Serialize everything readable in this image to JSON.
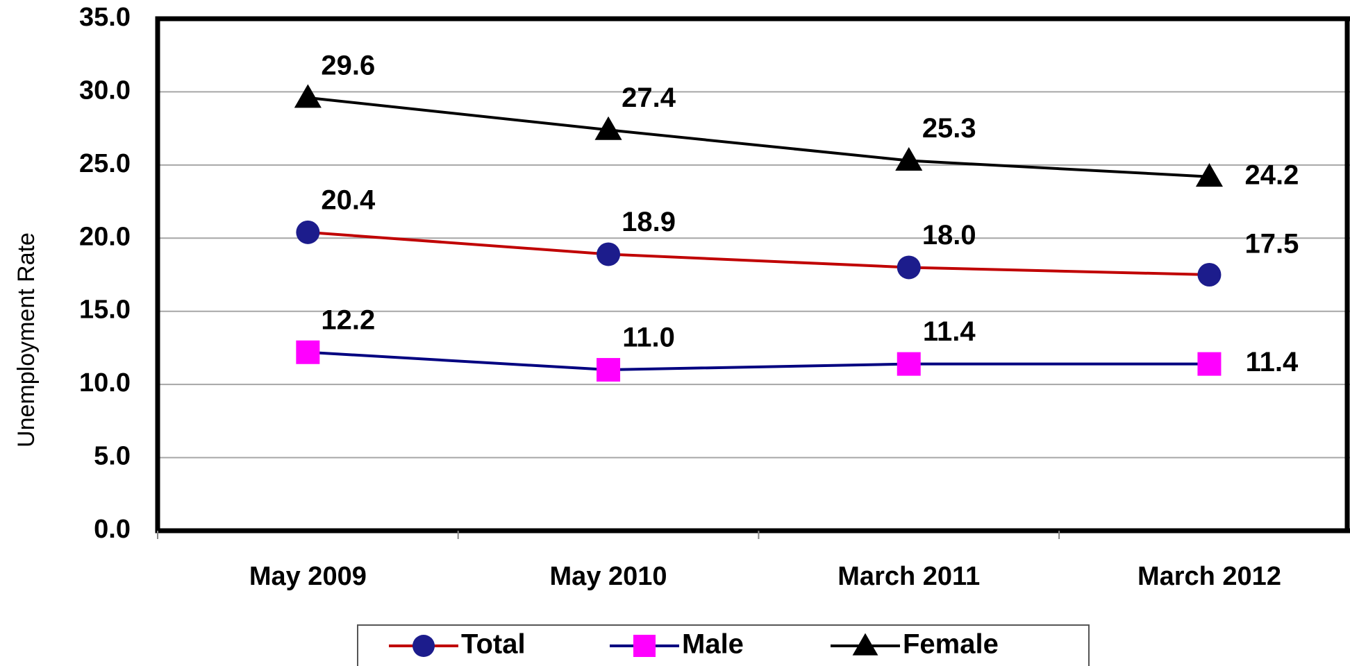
{
  "chart_data": {
    "type": "line",
    "y_label": "Unemployment Rate",
    "categories": [
      "May 2009",
      "May 2010",
      "March 2011",
      "March 2012"
    ],
    "series": [
      {
        "name": "Total",
        "color": "#c00000",
        "marker": "circle",
        "marker_color": "#1c1c8c",
        "values": [
          20.4,
          18.9,
          18.0,
          17.5
        ],
        "value_labels": [
          "20.4",
          "18.9",
          "18.0",
          "17.5"
        ]
      },
      {
        "name": "Male",
        "color": "#000080",
        "marker": "square",
        "marker_color": "#ff00ff",
        "values": [
          12.2,
          11.0,
          11.4,
          11.4
        ],
        "value_labels": [
          "12.2",
          "11.0",
          "11.4",
          "11.4"
        ]
      },
      {
        "name": "Female",
        "color": "#000000",
        "marker": "triangle",
        "marker_color": "#000000",
        "values": [
          29.6,
          27.4,
          25.3,
          24.2
        ],
        "value_labels": [
          "29.6",
          "27.4",
          "25.3",
          "24.2"
        ]
      }
    ],
    "ylim": [
      0,
      35
    ],
    "yticks": [
      {
        "value": 0,
        "label": "0.0"
      },
      {
        "value": 5,
        "label": "5.0"
      },
      {
        "value": 10,
        "label": "10.0"
      },
      {
        "value": 15,
        "label": "15.0"
      },
      {
        "value": 20,
        "label": "20.0"
      },
      {
        "value": 25,
        "label": "25.0"
      },
      {
        "value": 30,
        "label": "30.0"
      },
      {
        "value": 35,
        "label": "35.0"
      }
    ],
    "grid": true,
    "legend": "bottom"
  }
}
